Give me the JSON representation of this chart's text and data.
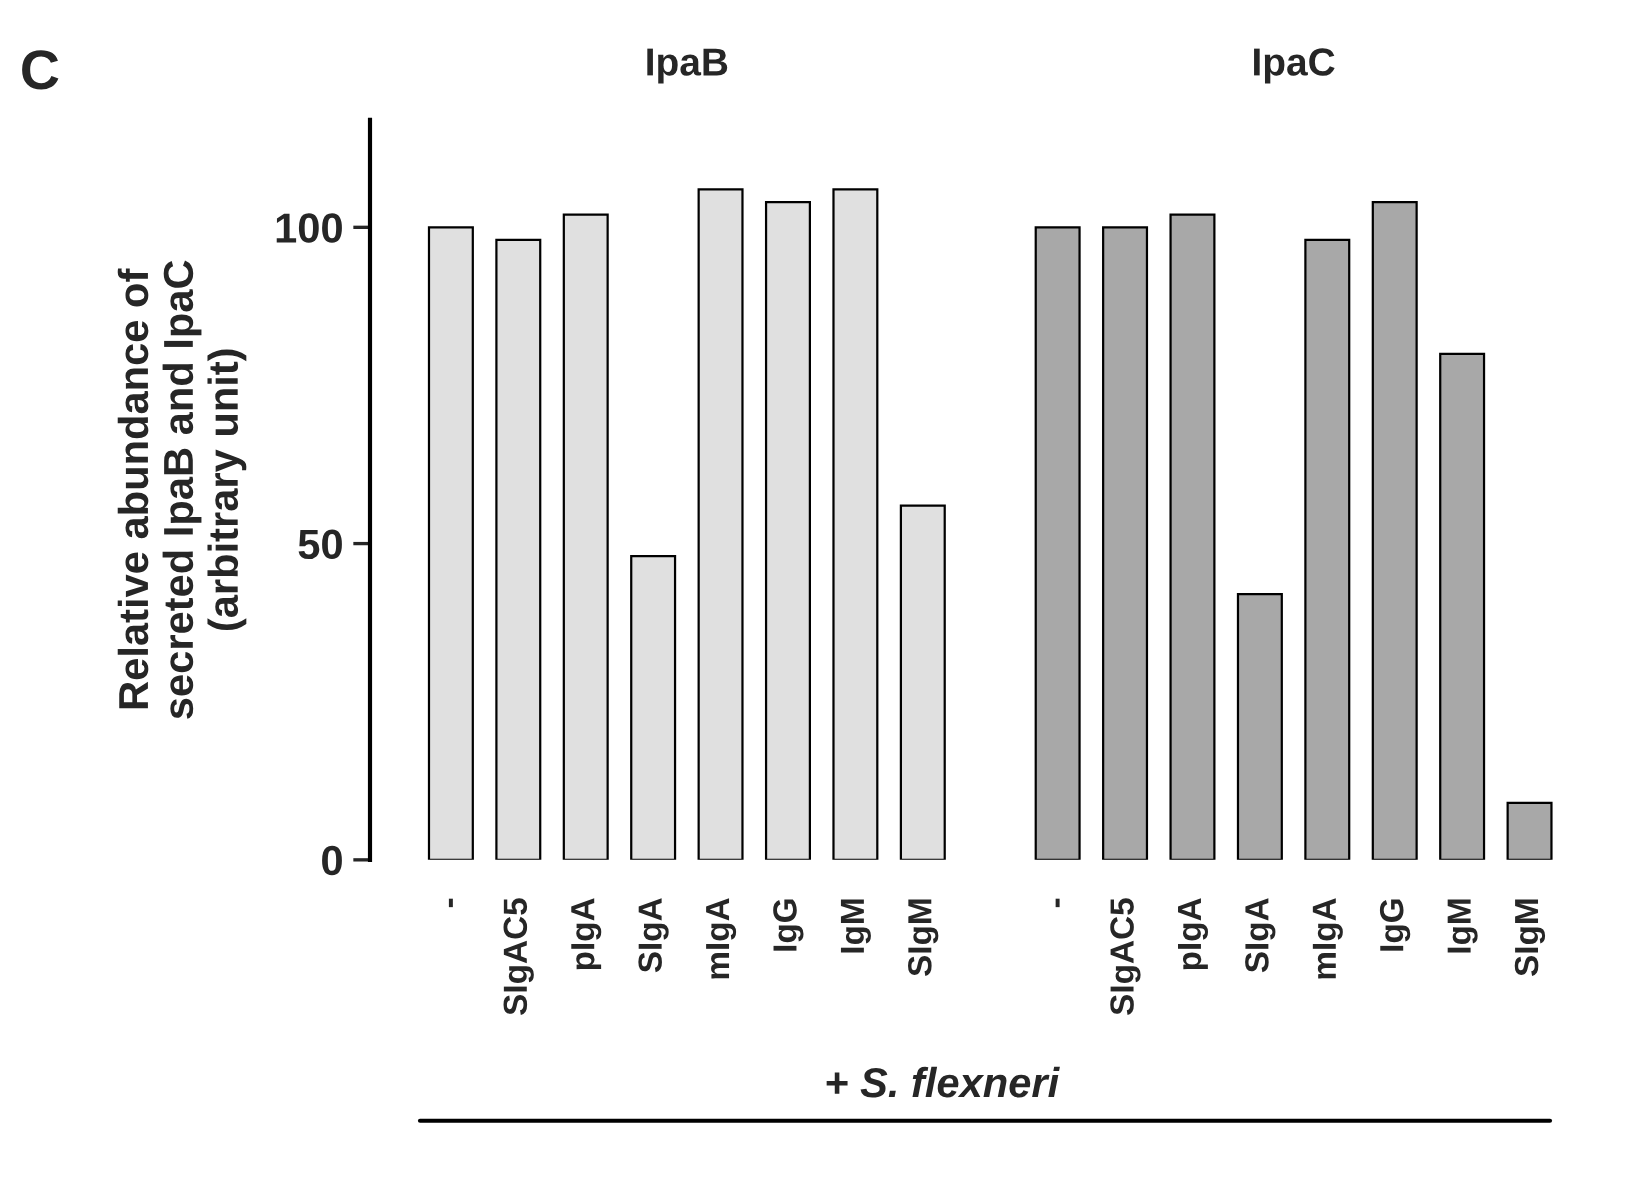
{
  "chart_data": {
    "type": "bar",
    "ylabel": "Relative abundance of\nsecreted IpaB and IpaC\n(arbitrary unit)",
    "categories": [
      "-",
      "SIgAC5",
      "pIgA",
      "SIgA",
      "mIgA",
      "IgG",
      "IgM",
      "SIgM",
      null,
      "-",
      "SIgAC5",
      "pIgA",
      "SIgA",
      "mIgA",
      "IgG",
      "IgM",
      "SIgM"
    ],
    "series": [
      {
        "color": "#e0e0e0",
        "values": [
          100,
          98,
          102,
          48,
          106,
          104,
          106,
          56,
          null,
          null,
          null,
          null,
          null,
          null,
          null,
          null,
          null
        ]
      },
      {
        "color": "#a8a8a8",
        "values": [
          null,
          null,
          null,
          null,
          null,
          null,
          null,
          null,
          null,
          100,
          100,
          102,
          42,
          98,
          104,
          80,
          9
        ]
      }
    ],
    "ylim": [
      0,
      117
    ],
    "yticks": [
      0,
      50,
      100
    ],
    "grid": false,
    "annotations": [
      "C",
      "IpaB",
      "IpaC",
      "+ S. flexneri"
    ]
  }
}
